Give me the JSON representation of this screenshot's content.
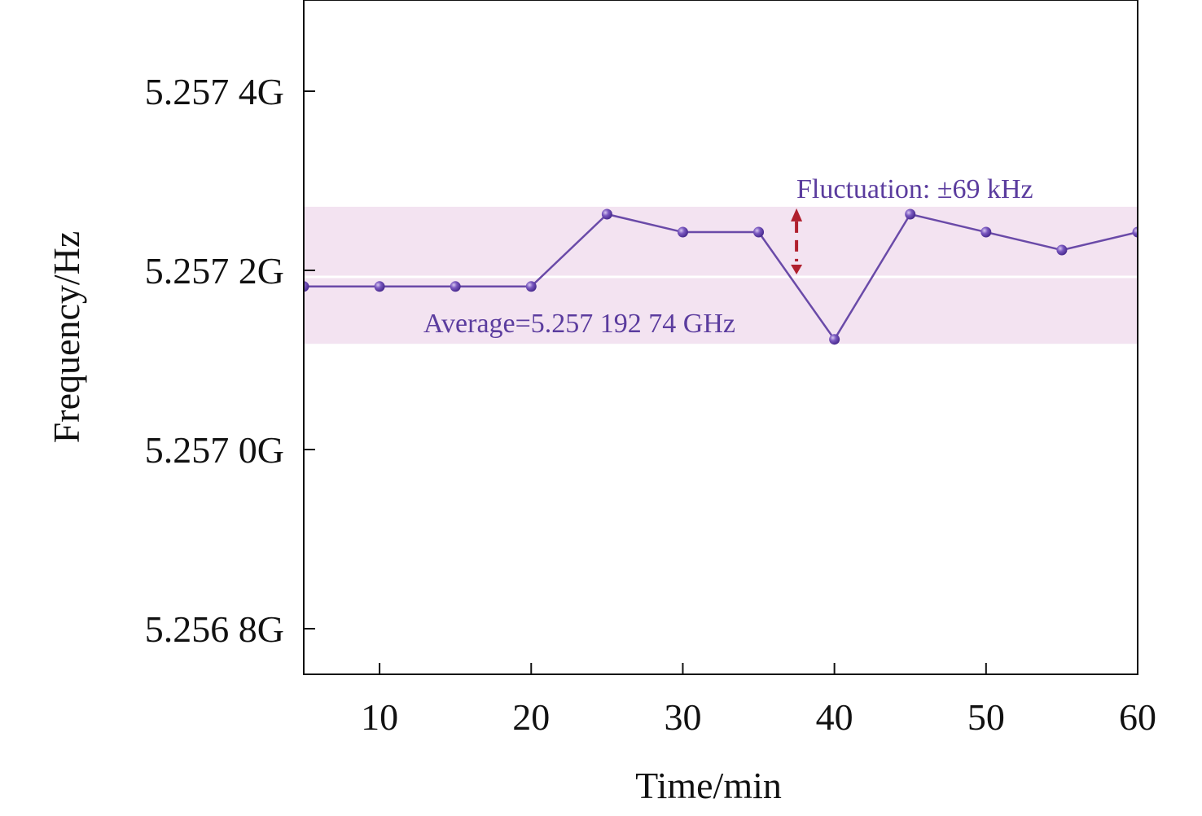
{
  "chart_data": {
    "type": "line",
    "xlabel": "Time/min",
    "ylabel": "Frequency/Hz",
    "xlim": [
      5,
      60
    ],
    "ylim": [
      5.25674909,
      5.25750182
    ],
    "xticks": [
      10,
      20,
      30,
      40,
      50,
      60
    ],
    "xtick_labels": [
      "10",
      "20",
      "30",
      "40",
      "50",
      "60"
    ],
    "yticks": [
      5.2574,
      5.2572,
      5.257,
      5.2568
    ],
    "ytick_labels": [
      "5.257 4G",
      "5.257 2G",
      "5.257 0G",
      "5.256 8G"
    ],
    "grid": false,
    "series": [
      {
        "x": [
          5,
          10,
          15,
          20,
          25,
          30,
          35,
          40,
          45,
          50,
          55,
          60
        ],
        "y": [
          5.257182,
          5.257182,
          5.257182,
          5.257182,
          5.2572627,
          5.2572427,
          5.2572427,
          5.257123,
          5.2572627,
          5.2572427,
          5.2572227,
          5.2572427
        ]
      }
    ],
    "average": 5.25719274,
    "band": [
      5.257118,
      5.257271
    ],
    "arrow_x": 37.5,
    "annotations": {
      "average": "Average=5.257 192 74 GHz",
      "fluctuation": "Fluctuation: ±69 kHz"
    },
    "colors": {
      "line": "#6a4aa8",
      "marker": "#6a48b0",
      "band": "#f3e3f1",
      "arrow": "#b0202e",
      "annotation_text": "#5b3c9e",
      "average_line": "#ffffff"
    }
  }
}
